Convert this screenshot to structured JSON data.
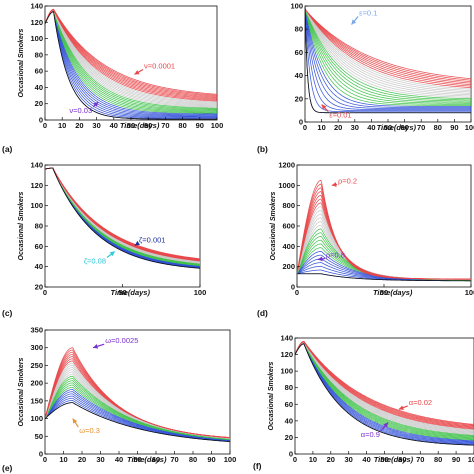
{
  "colors": {
    "red": "#e8474a",
    "green": "#3fc24a",
    "blue": "#2f4fd8",
    "black": "#111111",
    "gray": "#c8c8c8"
  },
  "chart_data": [
    {
      "type": "line",
      "panel_label": "(a)",
      "xlabel": "Time(days)",
      "ylabel": "Occasional Smokers",
      "xlim": [
        0,
        100
      ],
      "ylim": [
        0,
        140
      ],
      "xticks": [
        "0",
        "10",
        "20",
        "30",
        "40",
        "50",
        "60",
        "70",
        "80",
        "90",
        "100"
      ],
      "yticks": [
        "0",
        "20",
        "40",
        "60",
        "80",
        "100",
        "120",
        "140"
      ],
      "family": {
        "count": 30,
        "peak_t": 5,
        "start_top": 118,
        "start_bottom": 118,
        "peak_top": 136,
        "peak_bottom": 133,
        "end_top": 27,
        "end_bottom": 1,
        "decay_top": 30,
        "decay_bottom": 9
      },
      "annotations": [
        {
          "text": "ν=0.0001",
          "color": "#e8474a",
          "x": 50,
          "y": 56,
          "ax": 52,
          "ay": 56,
          "tx": 57,
          "ty": 62
        },
        {
          "text": "ν=0.03",
          "color": "#7b2fd0",
          "x": 33,
          "y": 22,
          "ax": 31,
          "ay": 22,
          "tx": 28,
          "ty": 16
        }
      ]
    },
    {
      "type": "line",
      "panel_label": "(b)",
      "xlabel": "Time(days)",
      "ylabel": "",
      "xlim": [
        0,
        100
      ],
      "ylim": [
        0,
        100
      ],
      "xticks": [
        "0",
        "10",
        "20",
        "30",
        "40",
        "50",
        "60",
        "70",
        "80",
        "90",
        "100"
      ],
      "yticks": [
        "0",
        "20",
        "40",
        "60",
        "80",
        "100"
      ],
      "family": {
        "count": 28,
        "peak_t": 0,
        "start_top": 97,
        "start_bottom": 100,
        "peak_top": 97,
        "peak_bottom": 100,
        "end_top": 32,
        "end_bottom": 8,
        "decay_top": 40,
        "decay_bottom": 1.5
      },
      "annotations": [
        {
          "text": "ε=0.1",
          "color": "#79a9ea",
          "x": 30,
          "y": 88,
          "ax": 28,
          "ay": 84,
          "tx": 32,
          "ty": 91
        },
        {
          "text": "ε=0.01",
          "color": "#e8474a",
          "x": 10,
          "y": 14,
          "ax": 10,
          "ay": 15,
          "tx": 14,
          "ty": 9
        }
      ]
    },
    {
      "type": "line",
      "panel_label": "(c)",
      "xlabel": "Time(days)",
      "ylabel": "Occasional Smokers",
      "xlim": [
        0,
        100
      ],
      "ylim": [
        20,
        140
      ],
      "xticks": [
        "0",
        "50",
        "100"
      ],
      "yticks": [
        "20",
        "40",
        "60",
        "80",
        "100",
        "120",
        "140"
      ],
      "family": {
        "count": 30,
        "peak_t": 5,
        "start_top": 136,
        "start_bottom": 136,
        "peak_top": 137,
        "peak_bottom": 137,
        "end_top": 42,
        "end_bottom": 35,
        "decay_top": 34,
        "decay_bottom": 28
      },
      "annotations": [
        {
          "text": "ζ=0.001",
          "color": "#1a2fa0",
          "x": 58,
          "y": 61,
          "ax": 58,
          "ay": 61,
          "tx": 60,
          "ty": 63
        },
        {
          "text": "ζ=0.08",
          "color": "#2cc8d8",
          "x": 46,
          "y": 55,
          "ax": 45,
          "ay": 55,
          "tx": 40,
          "ty": 49
        }
      ]
    },
    {
      "type": "line",
      "panel_label": "(d)",
      "xlabel": "Time(days)",
      "ylabel": "Occasional Smokers",
      "xlim": [
        0,
        100
      ],
      "ylim": [
        0,
        1200
      ],
      "xticks": [
        "0",
        "50",
        "100"
      ],
      "yticks": [
        "0",
        "200",
        "400",
        "600",
        "800",
        "1000",
        "1200"
      ],
      "family": {
        "count": 26,
        "peak_t": 14,
        "start_top": 130,
        "start_bottom": 130,
        "peak_top": 1050,
        "peak_bottom": 130,
        "end_top": 80,
        "end_bottom": 60,
        "decay_top": 9,
        "decay_bottom": 20
      },
      "annotations": [
        {
          "text": "ρ=0.2",
          "color": "#e8474a",
          "x": 18,
          "y": 980,
          "ax": 20,
          "ay": 1000,
          "tx": 23,
          "ty": 1010
        },
        {
          "text": "ρ=0.8",
          "color": "#7b2fd0",
          "x": 12,
          "y": 265,
          "ax": 12,
          "ay": 270,
          "tx": 16,
          "ty": 280
        }
      ]
    },
    {
      "type": "line",
      "panel_label": "(e)",
      "xlabel": "Time(days)",
      "ylabel": "Occasional Smokers",
      "xlim": [
        0,
        100
      ],
      "ylim": [
        0,
        350
      ],
      "xticks": [
        "0",
        "10",
        "20",
        "30",
        "40",
        "50",
        "60",
        "70",
        "80",
        "90",
        "100"
      ],
      "yticks": [
        "0",
        "50",
        "100",
        "150",
        "200",
        "250",
        "300",
        "350"
      ],
      "family": {
        "count": 26,
        "peak_t": 15,
        "start_top": 100,
        "start_bottom": 100,
        "peak_top": 300,
        "peak_bottom": 145,
        "end_top": 38,
        "end_bottom": 20,
        "decay_top": 25,
        "decay_bottom": 40
      },
      "annotations": [
        {
          "text": "ω=0.0025",
          "color": "#7b2fd0",
          "x": 24,
          "y": 300,
          "ax": 26,
          "ay": 300,
          "tx": 32,
          "ty": 310
        },
        {
          "text": "ω=0.3",
          "color": "#e89030",
          "x": 15,
          "y": 100,
          "ax": 15,
          "ay": 100,
          "tx": 18,
          "ty": 76
        }
      ]
    },
    {
      "type": "line",
      "panel_label": "(f)",
      "xlabel": "Time(days)",
      "ylabel": "Occasional Smokers",
      "xlim": [
        0,
        100
      ],
      "ylim": [
        0,
        140
      ],
      "xticks": [
        "0",
        "10",
        "20",
        "30",
        "40",
        "50",
        "60",
        "70",
        "80",
        "90",
        "100"
      ],
      "yticks": [
        "0",
        "20",
        "40",
        "60",
        "80",
        "100",
        "120",
        "140"
      ],
      "family": {
        "count": 28,
        "peak_t": 5,
        "start_top": 120,
        "start_bottom": 120,
        "peak_top": 136,
        "peak_bottom": 133,
        "end_top": 28,
        "end_bottom": 9,
        "decay_top": 36,
        "decay_bottom": 22
      },
      "annotations": [
        {
          "text": "α=0.02",
          "color": "#e8474a",
          "x": 58,
          "y": 54,
          "ax": 58,
          "ay": 54,
          "tx": 63,
          "ty": 58
        },
        {
          "text": "α=0.9",
          "color": "#7b2fd0",
          "x": 52,
          "y": 38,
          "ax": 52,
          "ay": 38,
          "tx": 48,
          "ty": 28
        }
      ]
    }
  ]
}
